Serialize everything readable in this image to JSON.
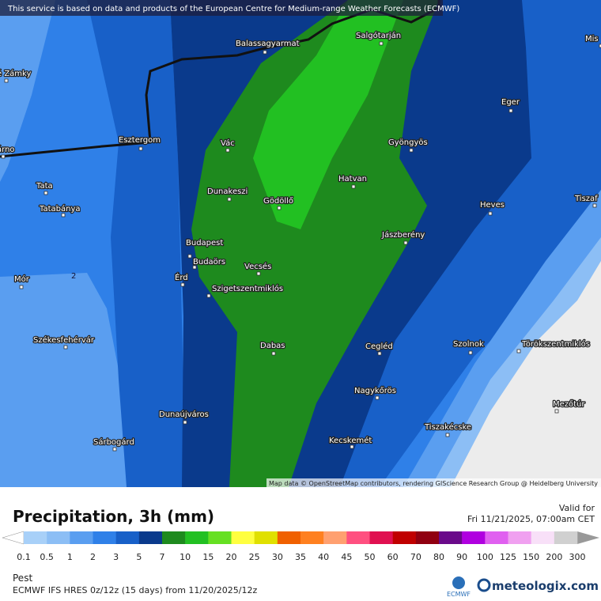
{
  "notice": "This service is based on data and products of the European Centre for Medium-range Weather Forecasts (ECMWF)",
  "map": {
    "places": [
      "Balassagyarmat",
      "Salgótarján",
      "é Zámky",
      "Eger",
      "Esztergom",
      "árno",
      "Vác",
      "Gyöngyös",
      "Tata",
      "Dunakeszi",
      "Hatvan",
      "Gödöllő",
      "Tatabánya",
      "Heves",
      "Tiszaf",
      "Mis",
      "Budapest",
      "Jászberény",
      "Budaörs",
      "Vecsés",
      "Mór",
      "Érd",
      "Szigetszentmiklós",
      "Székesfehérvár",
      "Szolnok",
      "Törökszentmiklós",
      "Dabas",
      "Cegléd",
      "Nagykőrös",
      "Mezőtúr",
      "Dunaújváros",
      "Tiszakécske",
      "Kecskemét",
      "Sárbogárd"
    ],
    "contour_label": "2",
    "attribution": "Map data © OpenStreetMap contributors, rendering GIScience Research Group @ Heidelberg University"
  },
  "legend": {
    "title": "Precipitation, 3h (mm)",
    "valid_label": "Valid for",
    "valid_time": "Fri 11/21/2025, 07:00am CET",
    "ticks": [
      0.1,
      0.5,
      1,
      2,
      3,
      5,
      7,
      10,
      15,
      20,
      25,
      30,
      35,
      40,
      45,
      50,
      60,
      70,
      80,
      90,
      100,
      125,
      150,
      200,
      300
    ],
    "colors": [
      "#a8d0f8",
      "#8cbef5",
      "#5a9ef0",
      "#2f80e8",
      "#1860c8",
      "#0a3a8c",
      "#1e8a1e",
      "#22c022",
      "#66e022",
      "#ffff40",
      "#e0e000",
      "#f06000",
      "#ff8020",
      "#ffa070",
      "#ff5080",
      "#e01050",
      "#c00000",
      "#900010",
      "#6a0a8a",
      "#b000e0",
      "#e060f0",
      "#f0a0f0",
      "#f8e0f8",
      "#d0d0d0"
    ]
  },
  "footer": {
    "location": "Pest",
    "model": "ECMWF IFS HRES 0z/12z (15 days) from  11/20/2025/12z",
    "logo_left": "ECMWF",
    "logo_right": "meteologix.com"
  }
}
